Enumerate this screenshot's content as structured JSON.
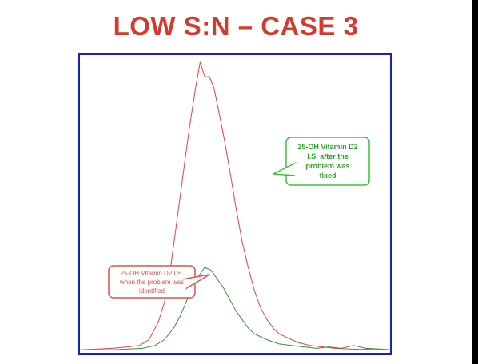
{
  "slide": {
    "title": "LOW S:N – CASE 3"
  },
  "colors": {
    "title": "#d63a2e",
    "frame": "#1a1fc4",
    "trace_red": "#e8413a",
    "trace_green": "#3c8c3c",
    "callout_green_border": "#3cc23c",
    "callout_green_text": "#2aa52a",
    "callout_red_border": "#d9534f",
    "callout_red_text": "#d9534f"
  },
  "chart_data": {
    "type": "line",
    "title": "",
    "xlabel": "",
    "ylabel": "",
    "xlim": [
      0,
      100
    ],
    "ylim": [
      0,
      100
    ],
    "grid": false,
    "series": [
      {
        "name": "25-OH Vitamin D2 I.S. after the problem was fixed",
        "color": "#e8413a",
        "x": [
          0,
          10,
          15,
          19,
          22,
          25,
          27,
          29,
          31,
          33,
          35,
          37,
          38.5,
          40,
          41.5,
          43,
          44.5,
          46,
          48,
          50,
          52,
          54,
          56,
          58,
          60,
          62,
          64,
          66,
          68,
          70,
          74,
          78,
          82,
          86,
          90,
          95,
          100
        ],
        "y": [
          0.5,
          1,
          1.5,
          2,
          4,
          10,
          17,
          29,
          45,
          61,
          77,
          91,
          100,
          95,
          95,
          91,
          83,
          75,
          63,
          50,
          38,
          29,
          21,
          15,
          11,
          8,
          6,
          5,
          4,
          3,
          2,
          1.5,
          1,
          0.8,
          0.6,
          0.8,
          0.5
        ]
      },
      {
        "name": "25-OH Vitamin D2 I.S. when the problem was identified",
        "color": "#3c8c3c",
        "x": [
          0,
          10,
          20,
          24,
          27,
          30,
          32,
          34,
          36,
          38,
          40,
          42,
          44,
          46,
          48,
          50,
          52,
          54,
          56,
          60,
          64,
          68,
          72,
          76,
          80,
          84,
          88,
          92,
          96,
          100
        ],
        "y": [
          0.5,
          0.5,
          1,
          2,
          4,
          8,
          12,
          17,
          22,
          26,
          29,
          28,
          25,
          22,
          18,
          14,
          11,
          8,
          6,
          4,
          2.5,
          2,
          1.5,
          1,
          1.5,
          1,
          2,
          1,
          0.8,
          0.5
        ]
      }
    ],
    "annotations": [
      {
        "name": "callout-fixed",
        "lines": [
          "25-OH Vitamin D2",
          "I.S. after the",
          "problem was",
          "fixed"
        ],
        "series": 0,
        "placement": "upper-right"
      },
      {
        "name": "callout-identified",
        "lines": [
          "25-OH Vitamin D2 I.S.",
          "when the problem was",
          "identified"
        ],
        "series": 1,
        "placement": "lower-left"
      }
    ]
  }
}
